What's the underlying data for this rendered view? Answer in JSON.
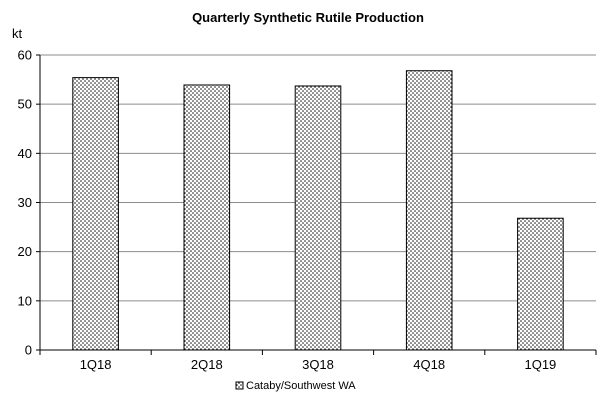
{
  "chart_data": {
    "type": "bar",
    "title": "Quarterly Synthetic Rutile Production",
    "ylabel": "kt",
    "xlabel": "",
    "categories": [
      "1Q18",
      "2Q18",
      "3Q18",
      "4Q18",
      "1Q19"
    ],
    "series": [
      {
        "name": "Cataby/Southwest WA",
        "values": [
          55.4,
          53.9,
          53.7,
          56.8,
          26.8
        ]
      }
    ],
    "ylim": [
      0,
      60
    ],
    "yticks": [
      0,
      10,
      20,
      30,
      40,
      50,
      60
    ],
    "grid": true,
    "legend": "bottom-center",
    "bar_fill": "dotted pattern",
    "colors": {
      "bar_fill": "#ffffff",
      "bar_dots": "#000000",
      "bar_border": "#000000",
      "gridline": "#8c8c8c",
      "axis": "#000000"
    }
  }
}
